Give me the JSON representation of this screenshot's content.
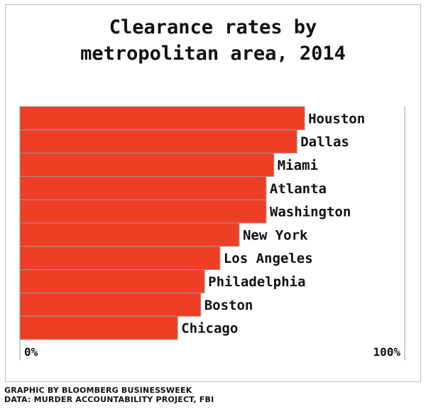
{
  "chart_data": {
    "type": "bar",
    "orientation": "horizontal",
    "title_lines": [
      "Clearance rates by",
      "metropolitan area, 2014"
    ],
    "categories": [
      "Houston",
      "Dallas",
      "Miami",
      "Atlanta",
      "Washington",
      "New York",
      "Los Angeles",
      "Philadelphia",
      "Boston",
      "Chicago"
    ],
    "values": [
      74,
      72,
      66,
      64,
      64,
      57,
      52,
      48,
      47,
      41
    ],
    "unit": "%",
    "xlim": [
      0,
      100
    ],
    "tick_labels": [
      "0%",
      "100%"
    ],
    "grid": false,
    "legend": "none",
    "colors": {
      "bar": "#ef3e26",
      "bar_border": "#9a9a9a",
      "axis": "#9a9a9a"
    }
  },
  "footer": {
    "line1": "GRAPHIC BY BLOOMBERG BUSINESSWEEK",
    "line2": "DATA: MURDER ACCOUNTABILITY PROJECT, FBI"
  }
}
